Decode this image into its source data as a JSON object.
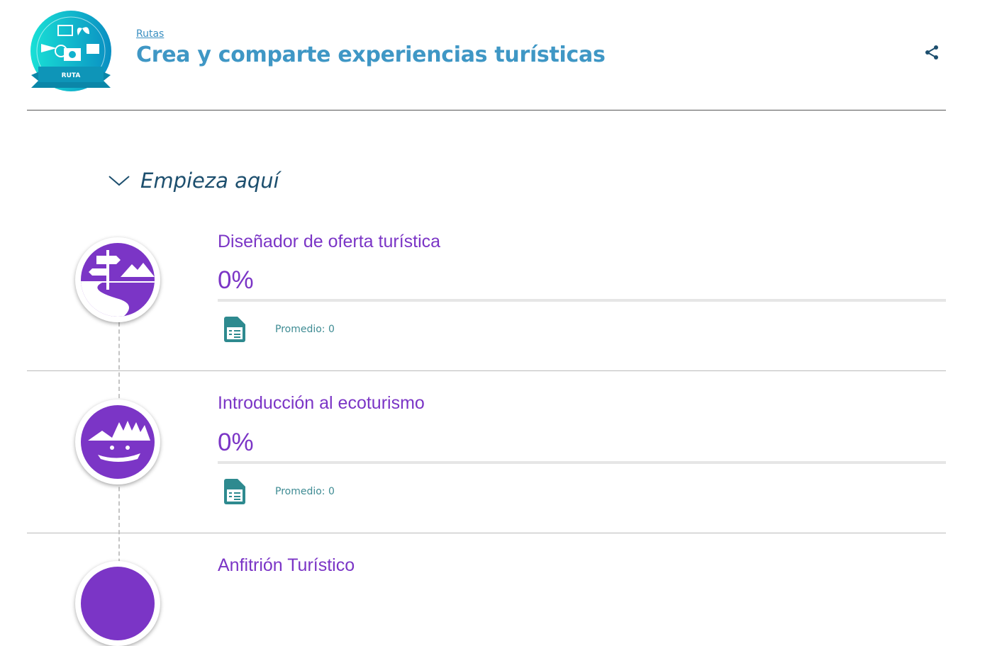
{
  "header": {
    "breadcrumb": "Rutas",
    "title": "Crea y comparte experiencias turísticas",
    "badge_label": "RUTA"
  },
  "section": {
    "title": "Empieza aquí"
  },
  "courses": [
    {
      "title": "Diseñador de oferta turística",
      "progress": "0%",
      "average": "Promedio: 0"
    },
    {
      "title": "Introducción al ecoturismo",
      "progress": "0%",
      "average": "Promedio: 0"
    },
    {
      "title": "Anfitrión Turístico"
    }
  ],
  "colors": {
    "accent": "#7b35c6",
    "header": "#3f97c5"
  }
}
